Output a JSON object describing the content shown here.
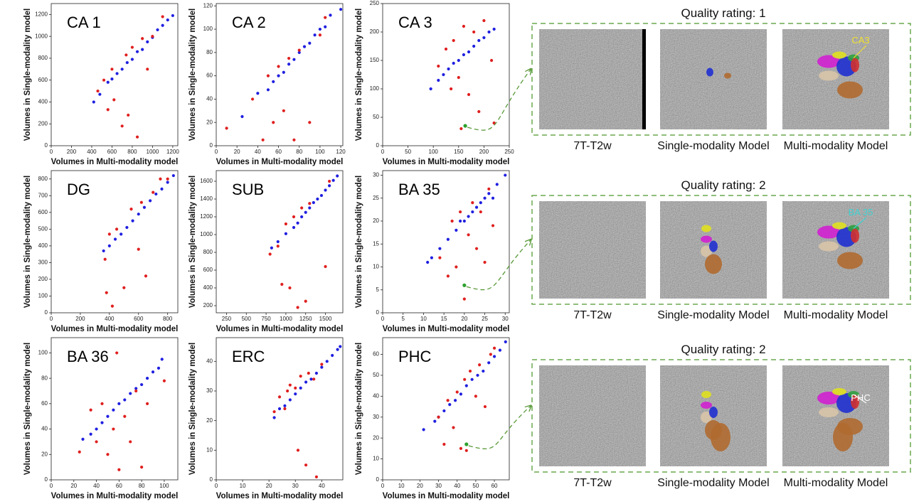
{
  "chart_data": [
    {
      "type": "scatter",
      "title": "CA 1",
      "x_label": "Volumes in Multi-modality model",
      "y_label": "Volumes in Single-modality model",
      "xlim": [
        0,
        1250
      ],
      "xticks": [
        0,
        200,
        400,
        600,
        800,
        1000,
        1200
      ],
      "ylim": [
        0,
        1300
      ],
      "yticks": [
        0,
        200,
        400,
        600,
        800,
        1000,
        1200
      ],
      "series": [
        {
          "color": "#1f1fe0",
          "x": [
            420,
            480,
            560,
            600,
            650,
            700,
            750,
            800,
            850,
            900,
            950,
            1000,
            1050,
            1100,
            1150,
            1200
          ],
          "values": [
            400,
            470,
            580,
            610,
            660,
            700,
            760,
            790,
            860,
            880,
            950,
            990,
            1060,
            1100,
            1150,
            1190
          ]
        },
        {
          "color": "#e01f1f",
          "x": [
            460,
            520,
            560,
            600,
            620,
            700,
            740,
            760,
            800,
            850,
            900,
            950,
            1000,
            1100
          ],
          "values": [
            500,
            600,
            330,
            700,
            420,
            180,
            830,
            280,
            900,
            80,
            980,
            700,
            1000,
            1180
          ]
        }
      ]
    },
    {
      "type": "scatter",
      "title": "CA 2",
      "x_label": "Volumes in Multi-modality model",
      "y_label": "Volumes in Single-modality model",
      "xlim": [
        0,
        122
      ],
      "xticks": [
        0,
        20,
        40,
        60,
        80,
        100,
        120
      ],
      "ylim": [
        0,
        122
      ],
      "yticks": [
        0,
        20,
        40,
        60,
        80,
        100,
        120
      ],
      "series": [
        {
          "color": "#1f1fe0",
          "x": [
            25,
            40,
            50,
            55,
            60,
            65,
            70,
            75,
            80,
            85,
            90,
            95,
            100,
            105,
            110,
            120
          ],
          "values": [
            25,
            45,
            48,
            55,
            60,
            63,
            70,
            74,
            80,
            85,
            88,
            95,
            100,
            102,
            112,
            117
          ]
        },
        {
          "color": "#e01f1f",
          "x": [
            10,
            35,
            45,
            50,
            55,
            60,
            65,
            70,
            75,
            80,
            90,
            100,
            105
          ],
          "values": [
            15,
            40,
            5,
            60,
            20,
            68,
            30,
            75,
            5,
            82,
            20,
            95,
            110
          ]
        }
      ]
    },
    {
      "type": "scatter",
      "title": "CA 3",
      "x_label": "Volumes in Multi-modality model",
      "y_label": "Volumes in Single-modality model",
      "xlim": [
        0,
        250
      ],
      "xticks": [
        0,
        50,
        100,
        150,
        200,
        250
      ],
      "ylim": [
        0,
        250
      ],
      "yticks": [
        0,
        50,
        100,
        150,
        200,
        250
      ],
      "series": [
        {
          "color": "#1f1fe0",
          "x": [
            95,
            110,
            120,
            130,
            140,
            150,
            160,
            170,
            180,
            190,
            200,
            210,
            220
          ],
          "values": [
            100,
            115,
            125,
            135,
            145,
            150,
            160,
            165,
            175,
            185,
            190,
            200,
            205
          ]
        },
        {
          "color": "#e01f1f",
          "x": [
            110,
            125,
            135,
            140,
            150,
            155,
            160,
            170,
            180,
            190,
            200,
            215,
            220
          ],
          "values": [
            140,
            170,
            100,
            185,
            120,
            30,
            210,
            90,
            200,
            60,
            220,
            150,
            40
          ]
        },
        {
          "color": "#2ca02c",
          "x": [
            163
          ],
          "values": [
            35
          ]
        }
      ]
    },
    {
      "type": "scatter",
      "title": "DG",
      "x_label": "Volumes in Multi-modality model",
      "y_label": "Volumes in Single-modality model",
      "xlim": [
        0,
        870
      ],
      "xticks": [
        0,
        200,
        400,
        600,
        800
      ],
      "ylim": [
        0,
        850
      ],
      "yticks": [
        0,
        100,
        200,
        300,
        400,
        500,
        600,
        700,
        800
      ],
      "series": [
        {
          "color": "#1f1fe0",
          "x": [
            360,
            400,
            440,
            480,
            520,
            560,
            600,
            640,
            680,
            720,
            760,
            800,
            840
          ],
          "values": [
            370,
            400,
            440,
            470,
            510,
            550,
            590,
            630,
            670,
            710,
            740,
            780,
            820
          ]
        },
        {
          "color": "#e01f1f",
          "x": [
            370,
            380,
            400,
            420,
            450,
            500,
            550,
            600,
            620,
            650,
            700,
            750,
            800
          ],
          "values": [
            320,
            120,
            470,
            40,
            500,
            150,
            620,
            380,
            660,
            220,
            720,
            800,
            800
          ]
        }
      ]
    },
    {
      "type": "scatter",
      "title": "SUB",
      "x_label": "Volumes in Multi-modality model",
      "y_label": "Volumes in Single-modality model",
      "xlim": [
        120,
        1720
      ],
      "xticks": [
        250,
        500,
        750,
        1000,
        1250,
        1500
      ],
      "ylim": [
        120,
        1720
      ],
      "yticks": [
        200,
        400,
        600,
        800,
        1000,
        1200,
        1400,
        1600
      ],
      "series": [
        {
          "color": "#1f1fe0",
          "x": [
            820,
            900,
            1000,
            1100,
            1150,
            1200,
            1250,
            1300,
            1350,
            1400,
            1450,
            1500,
            1550,
            1600,
            1650
          ],
          "values": [
            850,
            920,
            1010,
            1080,
            1130,
            1200,
            1250,
            1300,
            1360,
            1400,
            1440,
            1500,
            1550,
            1610,
            1660
          ]
        },
        {
          "color": "#e01f1f",
          "x": [
            800,
            900,
            950,
            1000,
            1050,
            1100,
            1150,
            1200,
            1250,
            1300,
            1500,
            1550
          ],
          "values": [
            780,
            870,
            440,
            1120,
            400,
            1200,
            180,
            1300,
            250,
            1350,
            640,
            1600
          ]
        }
      ]
    },
    {
      "type": "scatter",
      "title": "BA 35",
      "x_label": "Volumes in Multi-modality model",
      "y_label": "Volumes in Single-modality model",
      "xlim": [
        0,
        31
      ],
      "xticks": [
        0,
        5,
        10,
        15,
        20,
        25,
        30
      ],
      "ylim": [
        0,
        31
      ],
      "yticks": [
        0,
        5,
        10,
        15,
        20,
        25,
        30
      ],
      "series": [
        {
          "color": "#1f1fe0",
          "x": [
            11,
            12,
            14,
            16,
            18,
            19,
            20,
            21,
            22,
            23,
            24,
            25,
            26,
            27,
            28,
            30
          ],
          "values": [
            11,
            12,
            14,
            16,
            18,
            20,
            20,
            21,
            22,
            23,
            24,
            25,
            26,
            25,
            28,
            30
          ]
        },
        {
          "color": "#e01f1f",
          "x": [
            14,
            16,
            17,
            18,
            19,
            20,
            21,
            22,
            23,
            24,
            25,
            26,
            27
          ],
          "values": [
            12,
            8,
            20,
            10,
            22,
            3,
            17,
            24,
            14,
            22,
            11,
            27,
            19
          ]
        },
        {
          "color": "#2ca02c",
          "x": [
            20
          ],
          "values": [
            6
          ]
        }
      ]
    },
    {
      "type": "scatter",
      "title": "BA 36",
      "x_label": "Volumes in Multi-modality model",
      "y_label": "Volumes in Single-modality model",
      "xlim": [
        0,
        112
      ],
      "xticks": [
        0,
        20,
        40,
        60,
        80,
        100
      ],
      "ylim": [
        0,
        112
      ],
      "yticks": [
        0,
        20,
        40,
        60,
        80,
        100
      ],
      "series": [
        {
          "color": "#1f1fe0",
          "x": [
            28,
            35,
            40,
            45,
            50,
            55,
            60,
            65,
            70,
            75,
            80,
            85,
            90,
            95,
            98
          ],
          "values": [
            32,
            36,
            40,
            45,
            50,
            55,
            60,
            63,
            68,
            72,
            75,
            80,
            85,
            88,
            95
          ]
        },
        {
          "color": "#e01f1f",
          "x": [
            25,
            35,
            40,
            45,
            50,
            55,
            58,
            60,
            65,
            70,
            75,
            80,
            85,
            100
          ],
          "values": [
            22,
            55,
            30,
            60,
            20,
            40,
            100,
            8,
            50,
            30,
            70,
            10,
            60,
            78
          ]
        }
      ]
    },
    {
      "type": "scatter",
      "title": "ERC",
      "x_label": "Volumes in Multi-modality model",
      "y_label": "Volumes in Single-modality model",
      "xlim": [
        0,
        48
      ],
      "xticks": [
        0,
        10,
        20,
        30,
        40
      ],
      "ylim": [
        0,
        48
      ],
      "yticks": [
        0,
        10,
        20,
        30,
        40
      ],
      "series": [
        {
          "color": "#1f1fe0",
          "x": [
            22,
            24,
            26,
            28,
            30,
            32,
            34,
            36,
            38,
            40,
            42,
            44,
            46,
            47
          ],
          "values": [
            21,
            24,
            25,
            27,
            29,
            31,
            33,
            34,
            36,
            38,
            40,
            42,
            44,
            45
          ]
        },
        {
          "color": "#e01f1f",
          "x": [
            22,
            24,
            26,
            27,
            28,
            30,
            31,
            32,
            34,
            35,
            37,
            38,
            40
          ],
          "values": [
            23,
            28,
            24,
            30,
            32,
            31,
            10,
            35,
            5,
            36,
            34,
            1,
            39
          ]
        }
      ]
    },
    {
      "type": "scatter",
      "title": "PHC",
      "x_label": "Volumes in Multi-modality model",
      "y_label": "Volumes in Single-modality model",
      "xlim": [
        0,
        68
      ],
      "xticks": [
        0,
        10,
        20,
        30,
        40,
        50,
        60
      ],
      "ylim": [
        0,
        68
      ],
      "yticks": [
        0,
        10,
        20,
        30,
        40,
        50,
        60
      ],
      "series": [
        {
          "color": "#1f1fe0",
          "x": [
            22,
            28,
            30,
            33,
            36,
            39,
            42,
            45,
            48,
            51,
            54,
            57,
            60,
            63,
            66
          ],
          "values": [
            24,
            28,
            30,
            33,
            36,
            38,
            41,
            45,
            48,
            50,
            52,
            56,
            59,
            62,
            66
          ]
        },
        {
          "color": "#e01f1f",
          "x": [
            30,
            33,
            35,
            38,
            40,
            42,
            44,
            45,
            47,
            50,
            52,
            55,
            58,
            60
          ],
          "values": [
            30,
            17,
            38,
            25,
            42,
            15,
            48,
            14,
            52,
            40,
            55,
            35,
            60,
            63
          ]
        },
        {
          "color": "#2ca02c",
          "x": [
            45
          ],
          "values": [
            17
          ]
        }
      ]
    }
  ],
  "panels": [
    {
      "title": "Quality rating: 1",
      "captions": [
        "7T-T2w",
        "Single-modality Model",
        "Multi-modality Model"
      ],
      "annotation": "CA3",
      "annotation_color": "#f0e030"
    },
    {
      "title": "Quality rating: 2",
      "captions": [
        "7T-T2w",
        "Single-modality Model",
        "Multi-modality Model"
      ],
      "annotation": "BA 35",
      "annotation_color": "#40d0d0"
    },
    {
      "title": "Quality rating: 2",
      "captions": [
        "7T-T2w",
        "Single-modality Model",
        "Multi-modality Model"
      ],
      "annotation": "PHC",
      "annotation_color": "#ffffff"
    }
  ]
}
